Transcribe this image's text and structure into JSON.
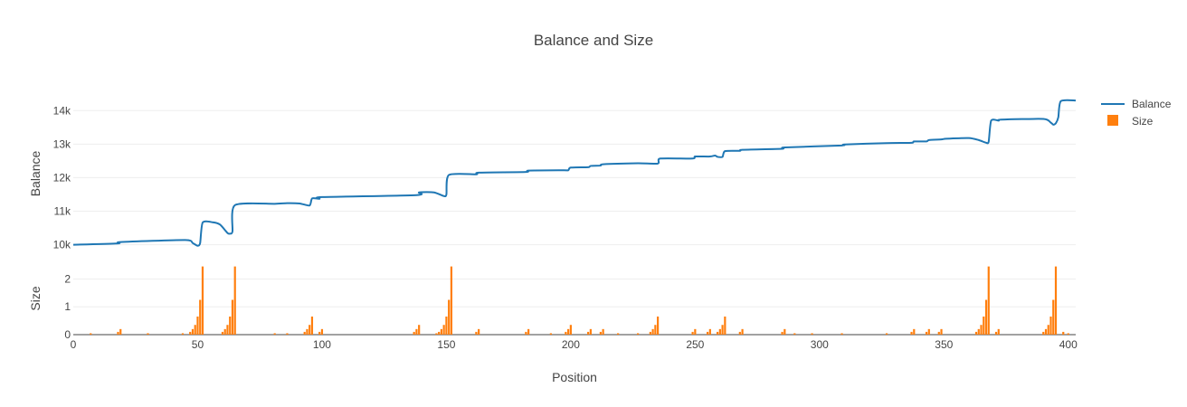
{
  "chart_data": {
    "type": "line+bar",
    "title": "Balance and Size",
    "xlabel": "Position",
    "xlim": [
      0,
      403
    ],
    "xticks": [
      0,
      50,
      100,
      150,
      200,
      250,
      300,
      350,
      400
    ],
    "legend": {
      "placement": "top-right",
      "entries": [
        "Balance",
        "Size"
      ]
    },
    "colors": {
      "balance": "#1f77b4",
      "size": "#ff7f0e"
    },
    "grid": true,
    "balance": {
      "name": "Balance",
      "ylabel": "Balance",
      "ylim": [
        9800,
        14600
      ],
      "yticks": [
        10000,
        11000,
        12000,
        13000,
        14000
      ],
      "ytick_labels": [
        "10k",
        "11k",
        "12k",
        "13k",
        "14k"
      ],
      "points": [
        [
          0,
          10000
        ],
        [
          18,
          10040
        ],
        [
          19,
          10080
        ],
        [
          45,
          10140
        ],
        [
          48,
          10050
        ],
        [
          50,
          9970
        ],
        [
          51,
          10050
        ],
        [
          52,
          10660
        ],
        [
          56,
          10670
        ],
        [
          59,
          10600
        ],
        [
          62,
          10350
        ],
        [
          63,
          10330
        ],
        [
          64,
          10400
        ],
        [
          65,
          11180
        ],
        [
          81,
          11220
        ],
        [
          86,
          11240
        ],
        [
          91,
          11230
        ],
        [
          95,
          11170
        ],
        [
          96,
          11380
        ],
        [
          99,
          11370
        ],
        [
          100,
          11420
        ],
        [
          138,
          11480
        ],
        [
          139,
          11560
        ],
        [
          145,
          11560
        ],
        [
          149,
          11450
        ],
        [
          150,
          11500
        ],
        [
          151,
          12080
        ],
        [
          162,
          12100
        ],
        [
          163,
          12150
        ],
        [
          182,
          12170
        ],
        [
          183,
          12210
        ],
        [
          197,
          12220
        ],
        [
          199,
          12220
        ],
        [
          200,
          12300
        ],
        [
          207,
          12310
        ],
        [
          208,
          12350
        ],
        [
          212,
          12360
        ],
        [
          213,
          12400
        ],
        [
          227,
          12430
        ],
        [
          235,
          12420
        ],
        [
          236,
          12570
        ],
        [
          249,
          12570
        ],
        [
          250,
          12630
        ],
        [
          256,
          12630
        ],
        [
          258,
          12660
        ],
        [
          259,
          12620
        ],
        [
          261,
          12620
        ],
        [
          262,
          12790
        ],
        [
          268,
          12800
        ],
        [
          269,
          12830
        ],
        [
          285,
          12860
        ],
        [
          286,
          12900
        ],
        [
          309,
          12960
        ],
        [
          310,
          12990
        ],
        [
          327,
          13030
        ],
        [
          337,
          13040
        ],
        [
          338,
          13080
        ],
        [
          343,
          13080
        ],
        [
          344,
          13120
        ],
        [
          349,
          13140
        ],
        [
          351,
          13160
        ],
        [
          360,
          13180
        ],
        [
          364,
          13120
        ],
        [
          367,
          13040
        ],
        [
          368,
          13070
        ],
        [
          369,
          13700
        ],
        [
          372,
          13700
        ],
        [
          373,
          13730
        ],
        [
          390,
          13750
        ],
        [
          393,
          13640
        ],
        [
          394,
          13580
        ],
        [
          395,
          13620
        ],
        [
          396,
          13800
        ],
        [
          397,
          14280
        ],
        [
          403,
          14300
        ]
      ]
    },
    "size": {
      "name": "Size",
      "ylabel": "Size",
      "ylim": [
        0,
        2.6
      ],
      "yticks": [
        0,
        1,
        2
      ],
      "ytick_labels": [
        "0",
        "1",
        "2"
      ],
      "bars": [
        [
          7,
          0.05
        ],
        [
          18,
          0.1
        ],
        [
          19,
          0.2
        ],
        [
          30,
          0.05
        ],
        [
          44,
          0.05
        ],
        [
          47,
          0.1
        ],
        [
          48,
          0.2
        ],
        [
          49,
          0.35
        ],
        [
          50,
          0.65
        ],
        [
          51,
          1.25
        ],
        [
          52,
          2.45
        ],
        [
          60,
          0.1
        ],
        [
          61,
          0.2
        ],
        [
          62,
          0.35
        ],
        [
          63,
          0.65
        ],
        [
          64,
          1.25
        ],
        [
          65,
          2.45
        ],
        [
          81,
          0.05
        ],
        [
          86,
          0.05
        ],
        [
          93,
          0.1
        ],
        [
          94,
          0.2
        ],
        [
          95,
          0.35
        ],
        [
          96,
          0.65
        ],
        [
          99,
          0.1
        ],
        [
          100,
          0.2
        ],
        [
          137,
          0.1
        ],
        [
          138,
          0.2
        ],
        [
          139,
          0.35
        ],
        [
          146,
          0.05
        ],
        [
          147,
          0.1
        ],
        [
          148,
          0.2
        ],
        [
          149,
          0.35
        ],
        [
          150,
          0.65
        ],
        [
          151,
          1.25
        ],
        [
          152,
          2.45
        ],
        [
          162,
          0.1
        ],
        [
          163,
          0.2
        ],
        [
          182,
          0.1
        ],
        [
          183,
          0.2
        ],
        [
          192,
          0.05
        ],
        [
          198,
          0.1
        ],
        [
          199,
          0.2
        ],
        [
          200,
          0.35
        ],
        [
          207,
          0.1
        ],
        [
          208,
          0.2
        ],
        [
          212,
          0.1
        ],
        [
          213,
          0.2
        ],
        [
          219,
          0.05
        ],
        [
          227,
          0.05
        ],
        [
          232,
          0.1
        ],
        [
          233,
          0.2
        ],
        [
          234,
          0.35
        ],
        [
          235,
          0.65
        ],
        [
          249,
          0.1
        ],
        [
          250,
          0.2
        ],
        [
          255,
          0.1
        ],
        [
          256,
          0.2
        ],
        [
          259,
          0.1
        ],
        [
          260,
          0.2
        ],
        [
          261,
          0.35
        ],
        [
          262,
          0.65
        ],
        [
          268,
          0.1
        ],
        [
          269,
          0.2
        ],
        [
          285,
          0.1
        ],
        [
          286,
          0.2
        ],
        [
          290,
          0.05
        ],
        [
          297,
          0.05
        ],
        [
          309,
          0.05
        ],
        [
          327,
          0.05
        ],
        [
          337,
          0.1
        ],
        [
          338,
          0.2
        ],
        [
          343,
          0.1
        ],
        [
          344,
          0.2
        ],
        [
          348,
          0.1
        ],
        [
          349,
          0.2
        ],
        [
          363,
          0.1
        ],
        [
          364,
          0.2
        ],
        [
          365,
          0.35
        ],
        [
          366,
          0.65
        ],
        [
          367,
          1.25
        ],
        [
          368,
          2.45
        ],
        [
          371,
          0.1
        ],
        [
          372,
          0.2
        ],
        [
          390,
          0.1
        ],
        [
          391,
          0.2
        ],
        [
          392,
          0.35
        ],
        [
          393,
          0.65
        ],
        [
          394,
          1.25
        ],
        [
          395,
          2.45
        ],
        [
          398,
          0.1
        ],
        [
          400,
          0.05
        ]
      ]
    }
  }
}
